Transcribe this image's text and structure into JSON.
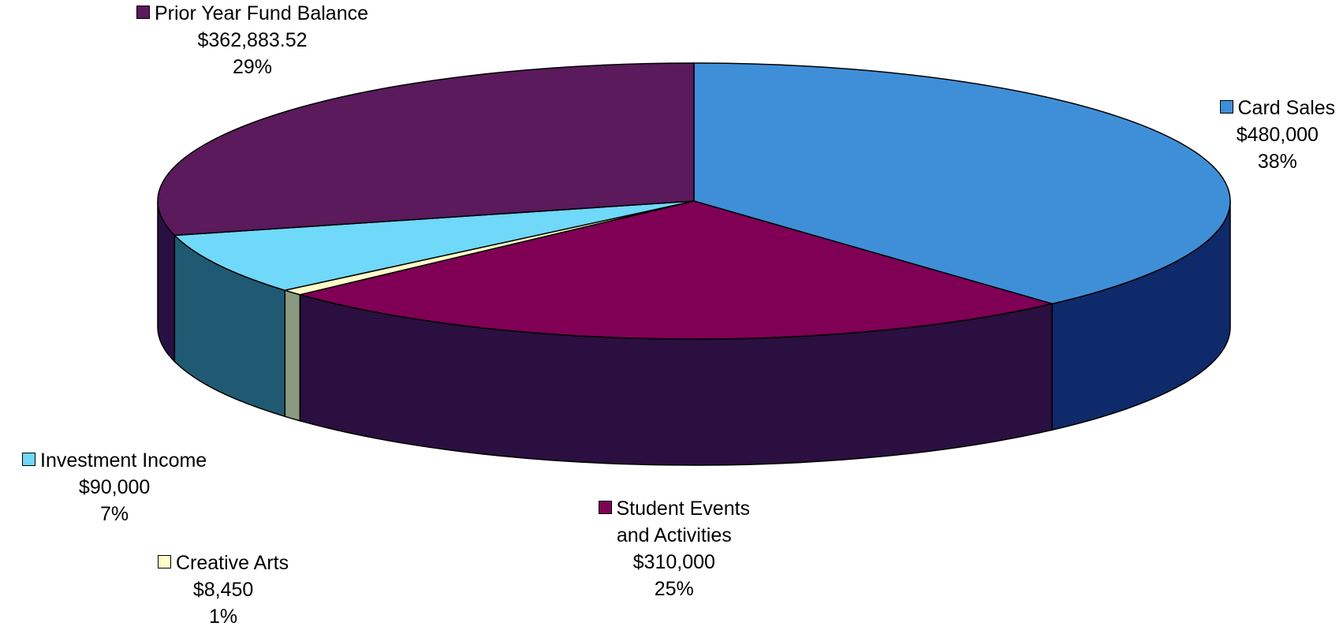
{
  "chart_data": {
    "type": "pie",
    "style": "3d",
    "slices": [
      {
        "name": "Card Sales",
        "value": 480000,
        "value_label": "$480,000",
        "percent_label": "38%",
        "color": "#3f8fd8",
        "side_color": "#0f2a6a"
      },
      {
        "name": "Student Events and Activities",
        "label_lines": [
          "Student Events",
          "and Activities"
        ],
        "value": 310000,
        "value_label": "$310,000",
        "percent_label": "25%",
        "color": "#800055",
        "side_color": "#2a0f40"
      },
      {
        "name": "Creative Arts",
        "value": 8450,
        "value_label": "$8,450",
        "percent_label": "1%",
        "color": "#fffcc8",
        "side_color": "#8a9a80"
      },
      {
        "name": "Investment Income",
        "value": 90000,
        "value_label": "$90,000",
        "percent_label": "7%",
        "color": "#70d8f8",
        "side_color": "#1f5a72"
      },
      {
        "name": "Prior Year Fund Balance",
        "value": 362883.52,
        "value_label": "$362,883.52",
        "percent_label": "29%",
        "color": "#5a1a5c",
        "side_color": "#281045"
      }
    ]
  }
}
